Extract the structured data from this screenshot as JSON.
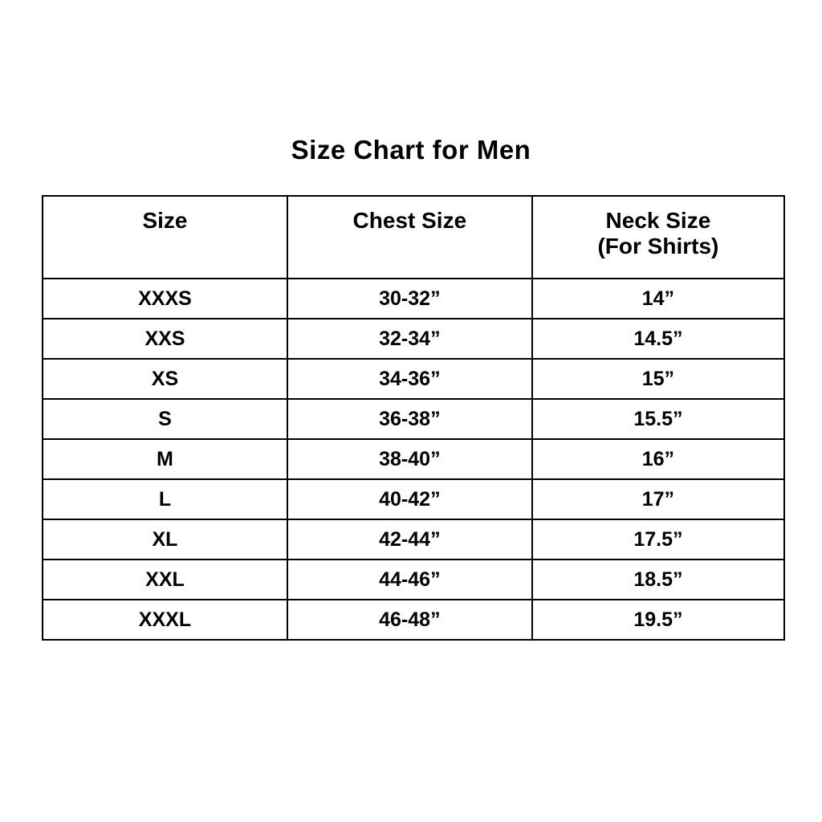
{
  "page": {
    "title": "Size Chart for Men"
  },
  "colors": {
    "background": "#ffffff",
    "text": "#000000",
    "border": "#000000"
  },
  "table": {
    "columns": [
      {
        "label": "Size",
        "sublabel": ""
      },
      {
        "label": "Chest Size",
        "sublabel": ""
      },
      {
        "label": "Neck Size",
        "sublabel": "(For Shirts)"
      }
    ],
    "rows": [
      {
        "size": "XXXS",
        "chest": "30-32”",
        "neck": "14”"
      },
      {
        "size": "XXS",
        "chest": "32-34”",
        "neck": "14.5”"
      },
      {
        "size": "XS",
        "chest": "34-36”",
        "neck": "15”"
      },
      {
        "size": "S",
        "chest": "36-38”",
        "neck": "15.5”"
      },
      {
        "size": "M",
        "chest": "38-40”",
        "neck": "16”"
      },
      {
        "size": "L",
        "chest": "40-42”",
        "neck": "17”"
      },
      {
        "size": "XL",
        "chest": "42-44”",
        "neck": "17.5”"
      },
      {
        "size": "XXL",
        "chest": "44-46”",
        "neck": "18.5”"
      },
      {
        "size": "XXXL",
        "chest": "46-48”",
        "neck": "19.5”"
      }
    ]
  },
  "chart_data": {
    "type": "table",
    "title": "Size Chart for Men",
    "columns": [
      "Size",
      "Chest Size",
      "Neck Size (For Shirts)"
    ],
    "rows": [
      [
        "XXXS",
        "30-32”",
        "14”"
      ],
      [
        "XXS",
        "32-34”",
        "14.5”"
      ],
      [
        "XS",
        "34-36”",
        "15”"
      ],
      [
        "S",
        "36-38”",
        "15.5”"
      ],
      [
        "M",
        "38-40”",
        "16”"
      ],
      [
        "L",
        "40-42”",
        "17”"
      ],
      [
        "XL",
        "42-44”",
        "17.5”"
      ],
      [
        "XXL",
        "44-46”",
        "18.5”"
      ],
      [
        "XXXL",
        "46-48”",
        "19.5”"
      ]
    ]
  }
}
